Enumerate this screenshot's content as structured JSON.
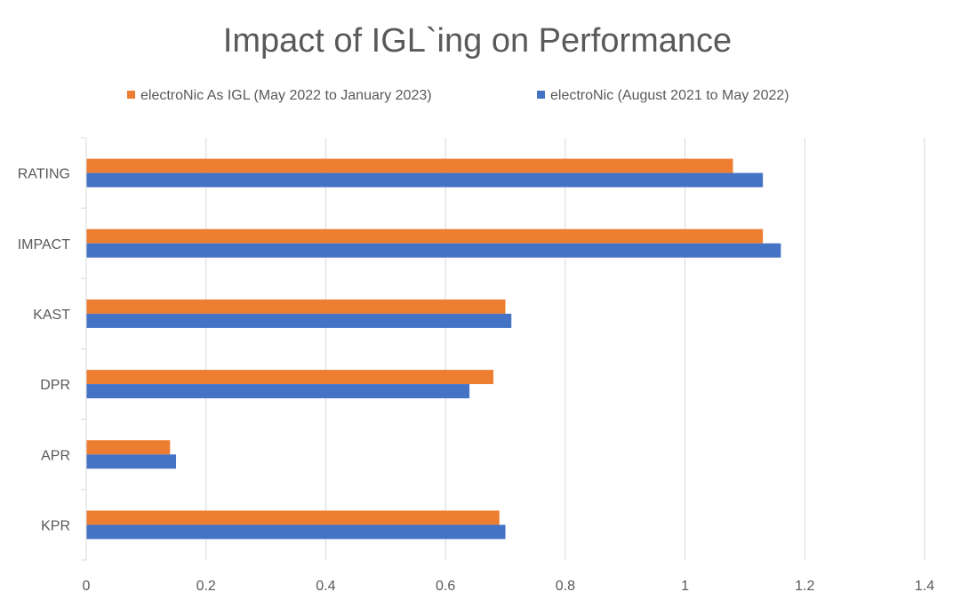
{
  "chart_data": {
    "type": "bar",
    "orientation": "horizontal",
    "title": "Impact of IGL`ing on Performance",
    "categories": [
      "RATING",
      "IMPACT",
      "KAST",
      "DPR",
      "APR",
      "KPR"
    ],
    "series": [
      {
        "name": "electroNic As IGL (May 2022 to January 2023)",
        "color": "#ed7d31",
        "values": [
          1.08,
          1.13,
          0.7,
          0.68,
          0.14,
          0.69
        ]
      },
      {
        "name": "electroNic (August 2021 to May 2022)",
        "color": "#4472c4",
        "values": [
          1.13,
          1.16,
          0.71,
          0.64,
          0.15,
          0.7
        ]
      }
    ],
    "xlim": [
      0,
      1.4
    ],
    "x_ticks": [
      "0",
      "0.2",
      "0.4",
      "0.6",
      "0.8",
      "1",
      "1.2",
      "1.4"
    ],
    "grid": true,
    "legend_position": "top"
  }
}
